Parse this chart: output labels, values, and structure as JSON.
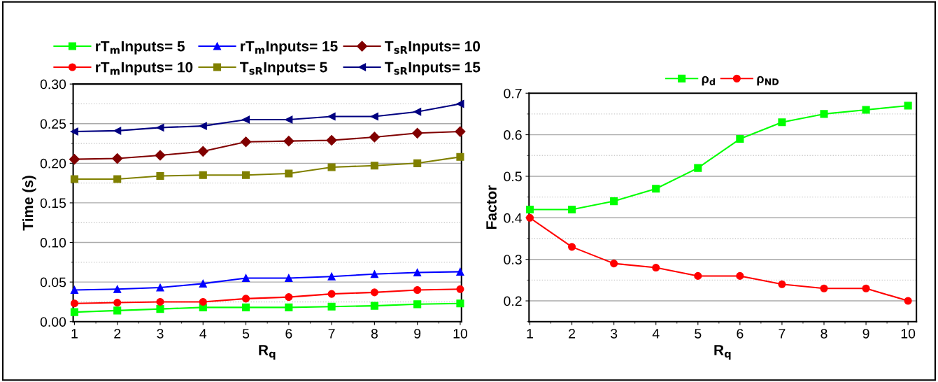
{
  "chart_data": [
    {
      "type": "line",
      "xlabel": "R$_{q}$",
      "ylabel": "Time (s)",
      "x": [
        1,
        2,
        3,
        4,
        5,
        6,
        7,
        8,
        9,
        10
      ],
      "xlim": [
        0.97,
        10.03
      ],
      "xticks": [
        1,
        2,
        3,
        4,
        5,
        6,
        7,
        8,
        9,
        10
      ],
      "ylim": [
        0,
        0.3
      ],
      "yticks": [
        {
          "value": 0,
          "label": "0.00"
        },
        {
          "value": 0.05,
          "label": "0.05"
        },
        {
          "value": 0.1,
          "label": "0.10"
        },
        {
          "value": 0.15,
          "label": "0.15"
        },
        {
          "value": 0.2,
          "label": "0.20"
        },
        {
          "value": 0.25,
          "label": "0.25"
        },
        {
          "value": 0.3,
          "label": "0.30"
        }
      ],
      "grid": "y",
      "legend": "top",
      "line_style": "solid",
      "series": [
        {
          "name": "rT$_{m}$Inputs= 5",
          "color": "#00ff00",
          "marker": "square",
          "values": [
            0.012,
            0.014,
            0.016,
            0.018,
            0.018,
            0.018,
            0.019,
            0.02,
            0.022,
            0.023
          ]
        },
        {
          "name": "rT$_{m}$Inputs= 10",
          "color": "#ff0000",
          "marker": "circle",
          "values": [
            0.023,
            0.024,
            0.025,
            0.025,
            0.029,
            0.031,
            0.035,
            0.037,
            0.04,
            0.041
          ]
        },
        {
          "name": "rT$_{m}$Inputs= 15",
          "color": "#0000ff",
          "marker": "triangle",
          "values": [
            0.04,
            0.041,
            0.043,
            0.048,
            0.055,
            0.055,
            0.057,
            0.06,
            0.062,
            0.063
          ]
        },
        {
          "name": "T$_{sR}$Inputs= 5",
          "color": "#808000",
          "marker": "square",
          "values": [
            0.18,
            0.18,
            0.184,
            0.185,
            0.185,
            0.187,
            0.195,
            0.197,
            0.2,
            0.208
          ]
        },
        {
          "name": "T$_{sR}$Inputs= 10",
          "color": "#800000",
          "marker": "diamond",
          "values": [
            0.205,
            0.206,
            0.21,
            0.215,
            0.227,
            0.228,
            0.229,
            0.233,
            0.238,
            0.24
          ]
        },
        {
          "name": "T$_{sR}$Inputs= 15",
          "color": "#000080",
          "marker": "triangle_left",
          "values": [
            0.24,
            0.241,
            0.245,
            0.247,
            0.255,
            0.255,
            0.259,
            0.259,
            0.265,
            0.275
          ]
        }
      ]
    },
    {
      "type": "line",
      "xlabel": "R$_{q}$",
      "ylabel": "Factor",
      "x": [
        1,
        2,
        3,
        4,
        5,
        6,
        7,
        8,
        9,
        10
      ],
      "xlim": [
        0.98,
        10.2
      ],
      "xticks": [
        1,
        2,
        3,
        4,
        5,
        6,
        7,
        8,
        9,
        10
      ],
      "ylim": [
        0.15,
        0.7
      ],
      "yticks": [
        0.2,
        0.3,
        0.4,
        0.5,
        0.6,
        0.7
      ],
      "grid": "y",
      "legend": "top",
      "line_style": "solid",
      "series": [
        {
          "name": "ρ$_{d}$",
          "color": "#00ff00",
          "marker": "square",
          "values": [
            0.42,
            0.42,
            0.44,
            0.47,
            0.52,
            0.59,
            0.63,
            0.65,
            0.66,
            0.67
          ]
        },
        {
          "name": "ρ$_{ND}$",
          "color": "#ff0000",
          "marker": "circle",
          "values": [
            0.4,
            0.33,
            0.29,
            0.28,
            0.26,
            0.26,
            0.24,
            0.23,
            0.23,
            0.2
          ]
        }
      ]
    }
  ]
}
